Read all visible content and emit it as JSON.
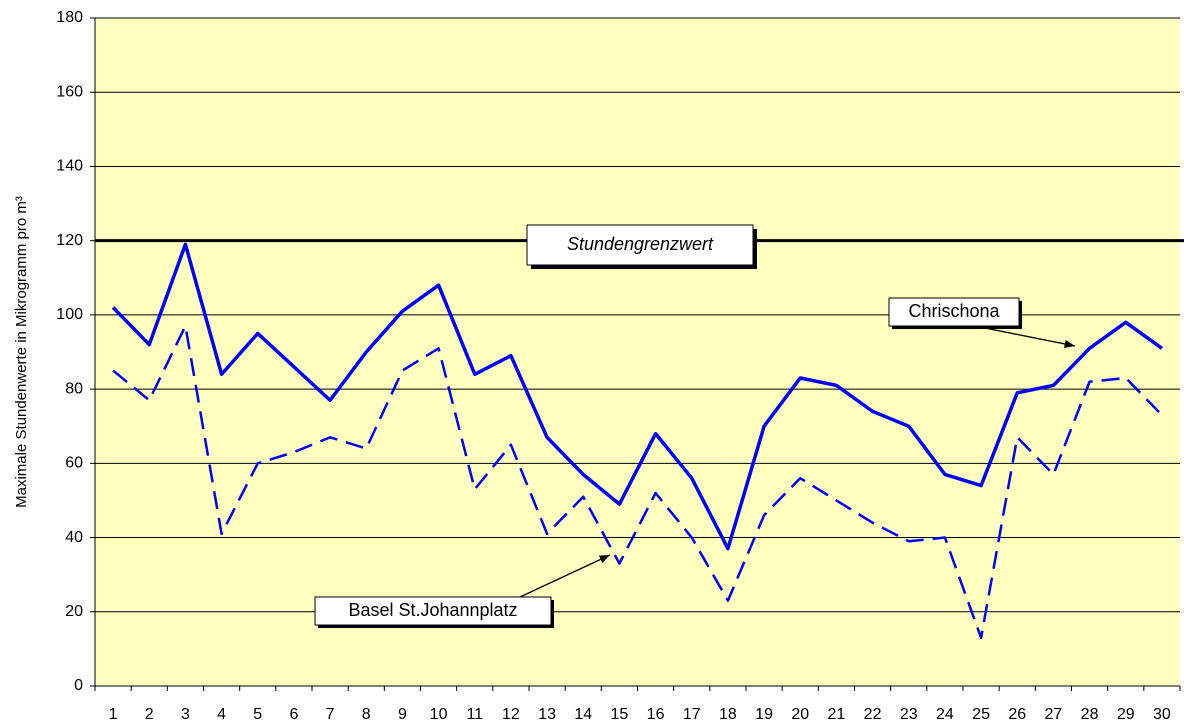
{
  "chart_data": {
    "type": "line",
    "y_label": "Maximale Stundenwerte in Mikrogramm pro m³",
    "categories": [
      "1",
      "2",
      "3",
      "4",
      "5",
      "6",
      "7",
      "8",
      "9",
      "10",
      "11",
      "12",
      "13",
      "14",
      "15",
      "16",
      "17",
      "18",
      "19",
      "20",
      "21",
      "22",
      "23",
      "24",
      "25",
      "26",
      "27",
      "28",
      "29",
      "30"
    ],
    "series": [
      {
        "name": "Chrischona",
        "color": "#0000ff",
        "dash": false,
        "values": [
          102,
          92,
          119,
          84,
          95,
          86,
          77,
          90,
          101,
          108,
          84,
          89,
          67,
          57,
          49,
          68,
          56,
          37,
          70,
          83,
          81,
          74,
          70,
          57,
          54,
          79,
          81,
          91,
          98,
          91
        ]
      },
      {
        "name": "Basel St.Johannplatz",
        "color": "#0000ff",
        "dash": true,
        "values": [
          85,
          77,
          97,
          41,
          60,
          63,
          67,
          64,
          85,
          91,
          53,
          65,
          41,
          51,
          33,
          52,
          40,
          23,
          46,
          56,
          50,
          44,
          39,
          40,
          13,
          67,
          57,
          82,
          83,
          73
        ]
      }
    ],
    "threshold": {
      "value": 120,
      "label": "Stundengrenzwert"
    },
    "ylim": [
      0,
      180
    ],
    "yticks": [
      0,
      20,
      40,
      60,
      80,
      100,
      120,
      140,
      160,
      180
    ],
    "grid": true,
    "background": "#ffffc0"
  }
}
